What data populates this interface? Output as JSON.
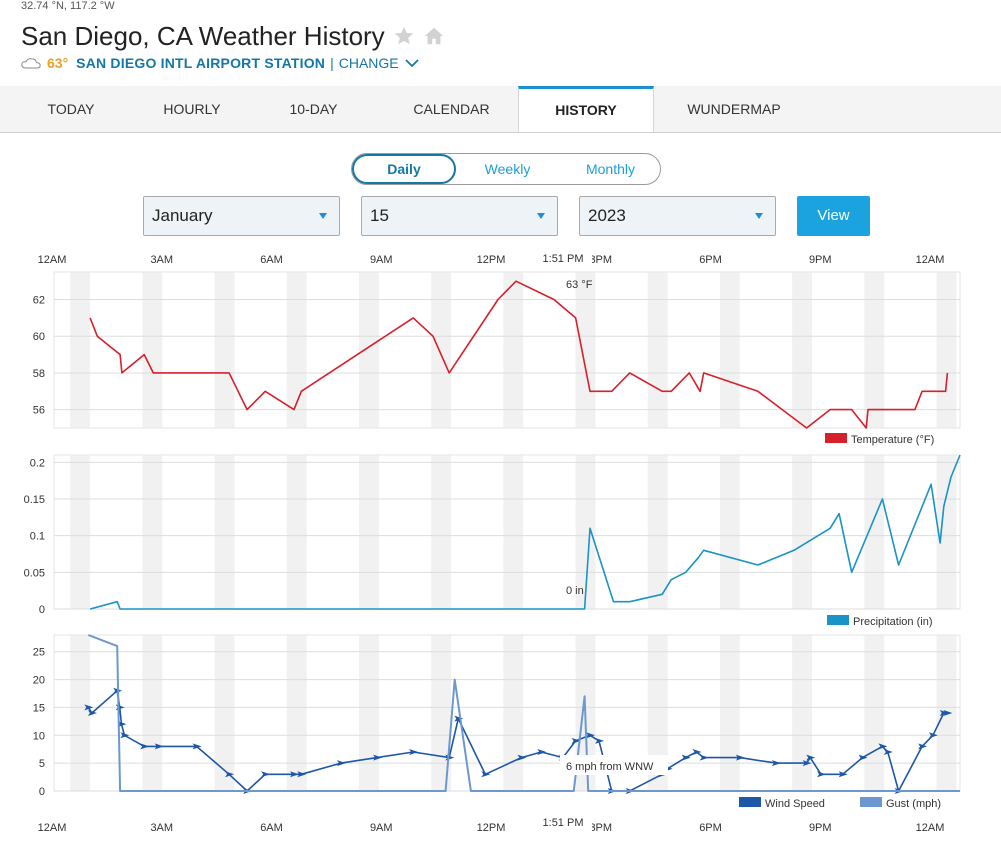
{
  "header": {
    "coords": "32.74 °N, 117.2 °W",
    "title": "San Diego, CA Weather History",
    "current_temp": "63°",
    "station": "SAN DIEGO INTL AIRPORT STATION",
    "separator": "|",
    "change_label": "CHANGE",
    "icons": [
      "star-icon",
      "home-icon",
      "cloud-icon",
      "chevron-down-icon"
    ]
  },
  "tabs": [
    "TODAY",
    "HOURLY",
    "10-DAY",
    "CALENDAR",
    "HISTORY",
    "WUNDERMAP"
  ],
  "active_tab": "HISTORY",
  "period_toggle": {
    "options": [
      "Daily",
      "Weekly",
      "Monthly"
    ],
    "active": "Daily"
  },
  "date_selectors": {
    "month": "January",
    "day": "15",
    "year": "2023",
    "view_label": "View"
  },
  "colors": {
    "temperature": "#d6202b",
    "precipitation": "#1a93c6",
    "wind_speed": "#1d57a8",
    "gust": "#6c98cf",
    "accent": "#1ba3e0"
  },
  "chart_data": [
    {
      "type": "line",
      "x_ticks": [
        "12AM",
        "3AM",
        "6AM",
        "9AM",
        "12PM",
        "3PM",
        "6PM",
        "9PM",
        "12AM"
      ],
      "hover_time": "1:51 PM",
      "hover_label": "63 °F",
      "legend": "Temperature (°F)",
      "ylim": [
        55,
        63.5
      ],
      "y_ticks": [
        "56",
        "58",
        "60",
        "62"
      ],
      "series": [
        {
          "name": "Temperature (°F)",
          "points": [
            [
              1.0,
              61
            ],
            [
              1.2,
              60
            ],
            [
              1.83,
              59
            ],
            [
              1.88,
              58
            ],
            [
              2.5,
              59
            ],
            [
              2.75,
              58
            ],
            [
              4.85,
              58
            ],
            [
              5.35,
              56
            ],
            [
              5.85,
              57
            ],
            [
              6.65,
              56
            ],
            [
              6.85,
              57
            ],
            [
              9.95,
              61
            ],
            [
              10.5,
              60
            ],
            [
              10.95,
              58
            ],
            [
              12.3,
              62
            ],
            [
              12.8,
              63
            ],
            [
              13.85,
              62
            ],
            [
              14.45,
              61
            ],
            [
              14.85,
              57
            ],
            [
              15.45,
              57
            ],
            [
              15.95,
              58
            ],
            [
              16.85,
              57
            ],
            [
              17.1,
              57
            ],
            [
              17.6,
              58
            ],
            [
              17.9,
              57
            ],
            [
              18.0,
              58
            ],
            [
              19.5,
              57
            ],
            [
              20.85,
              55
            ],
            [
              21.5,
              56
            ],
            [
              22.1,
              56
            ],
            [
              22.5,
              55
            ],
            [
              22.55,
              56
            ],
            [
              23.85,
              56
            ],
            [
              24.05,
              57
            ],
            [
              24.7,
              57
            ],
            [
              24.75,
              58
            ]
          ]
        }
      ]
    },
    {
      "type": "line",
      "hover_label": "0 in",
      "legend": "Precipitation (in)",
      "ylim": [
        0,
        0.21
      ],
      "y_ticks": [
        "0",
        "0.05",
        "0.1",
        "0.15",
        "0.2"
      ],
      "series": [
        {
          "name": "Precipitation (in)",
          "points": [
            [
              1.0,
              0
            ],
            [
              1.75,
              0.01
            ],
            [
              1.83,
              0
            ],
            [
              14.7,
              0
            ],
            [
              14.85,
              0.11
            ],
            [
              15.5,
              0.01
            ],
            [
              15.95,
              0.01
            ],
            [
              16.85,
              0.02
            ],
            [
              17.1,
              0.04
            ],
            [
              17.5,
              0.05
            ],
            [
              17.85,
              0.07
            ],
            [
              18.0,
              0.08
            ],
            [
              19.5,
              0.06
            ],
            [
              20.5,
              0.08
            ],
            [
              21.5,
              0.11
            ],
            [
              21.75,
              0.13
            ],
            [
              22.1,
              0.05
            ],
            [
              22.95,
              0.15
            ],
            [
              23.4,
              0.06
            ],
            [
              24.3,
              0.17
            ],
            [
              24.55,
              0.09
            ],
            [
              24.65,
              0.14
            ],
            [
              24.85,
              0.18
            ],
            [
              25.1,
              0.21
            ]
          ]
        }
      ]
    },
    {
      "type": "line",
      "hover_label": "6 mph from WNW",
      "legend": [
        "Wind Speed",
        "Gust (mph)"
      ],
      "ylim": [
        0,
        28
      ],
      "y_ticks": [
        "0",
        "5",
        "10",
        "15",
        "20",
        "25"
      ],
      "series": [
        {
          "name": "Wind Speed",
          "points": [
            [
              0.95,
              15
            ],
            [
              1.05,
              14
            ],
            [
              1.75,
              18
            ],
            [
              1.82,
              15
            ],
            [
              1.87,
              12
            ],
            [
              1.95,
              10
            ],
            [
              2.5,
              8
            ],
            [
              2.9,
              8
            ],
            [
              3.95,
              8
            ],
            [
              4.85,
              3
            ],
            [
              5.35,
              0
            ],
            [
              5.85,
              3
            ],
            [
              6.65,
              3
            ],
            [
              6.85,
              3
            ],
            [
              7.95,
              5
            ],
            [
              8.95,
              6
            ],
            [
              9.95,
              7
            ],
            [
              10.95,
              6
            ],
            [
              11.2,
              13
            ],
            [
              11.95,
              3
            ],
            [
              12.95,
              6
            ],
            [
              13.5,
              7
            ],
            [
              14.1,
              6
            ],
            [
              14.45,
              9
            ],
            [
              14.85,
              10
            ],
            [
              15.1,
              9
            ],
            [
              15.45,
              0
            ],
            [
              15.95,
              0
            ],
            [
              16.85,
              3
            ],
            [
              17.0,
              4
            ],
            [
              17.5,
              6
            ],
            [
              17.8,
              7
            ],
            [
              18.0,
              6
            ],
            [
              19.0,
              6
            ],
            [
              20.0,
              5
            ],
            [
              20.85,
              5
            ],
            [
              20.95,
              6
            ],
            [
              21.25,
              3
            ],
            [
              21.85,
              3
            ],
            [
              22.4,
              6
            ],
            [
              22.95,
              8
            ],
            [
              23.1,
              7
            ],
            [
              23.4,
              0
            ],
            [
              24.05,
              8
            ],
            [
              24.35,
              10
            ],
            [
              24.65,
              14
            ],
            [
              24.75,
              14
            ]
          ]
        },
        {
          "name": "Gust (mph)",
          "points": [
            [
              0.95,
              28
            ],
            [
              1.75,
              26
            ],
            [
              1.83,
              0
            ],
            [
              10.85,
              0
            ],
            [
              11.1,
              20
            ],
            [
              11.55,
              0
            ],
            [
              14.4,
              0
            ],
            [
              14.7,
              17
            ],
            [
              14.8,
              0
            ],
            [
              25.1,
              0
            ]
          ]
        }
      ]
    }
  ]
}
